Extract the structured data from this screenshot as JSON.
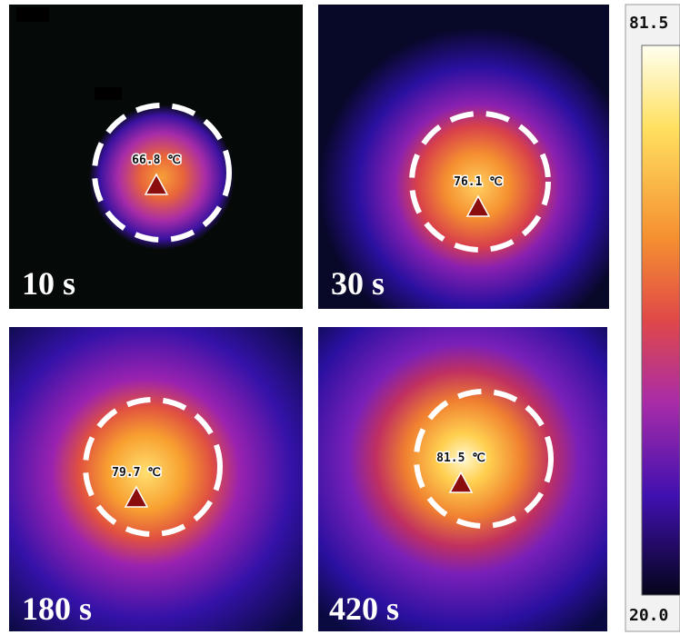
{
  "panels": [
    {
      "time": "10 s",
      "temperature": "66.8 ℃"
    },
    {
      "time": "30 s",
      "temperature": "76.1 ℃"
    },
    {
      "time": "180 s",
      "temperature": "79.7 ℃"
    },
    {
      "time": "420 s",
      "temperature": "81.5 ℃"
    }
  ],
  "colorbar": {
    "max": "81.5",
    "min": "20.0"
  }
}
